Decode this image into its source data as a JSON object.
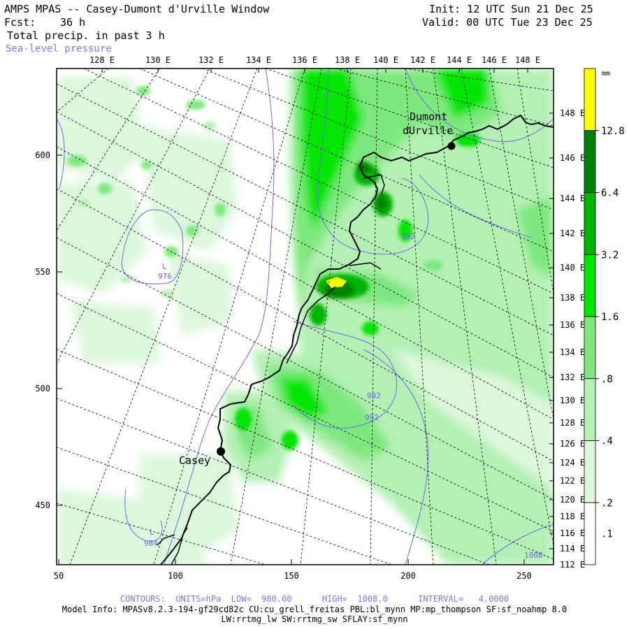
{
  "header": {
    "title": "AMPS MPAS -- Casey-Dumont d'Urville Window",
    "init": "Init: 12 UTC Sun 21 Dec 25",
    "fcst_label": "Fcst:",
    "fcst_value": "36 h",
    "valid": "Valid: 00 UTC Tue 23 Dec 25",
    "field": "Total precip. in past 3 h",
    "overlay": "Sea-level pressure"
  },
  "map": {
    "top_lon_labels": [
      "128 E",
      "130 E",
      "132 E",
      "134 E",
      "136 E",
      "138 E",
      "140 E",
      "142 E",
      "144 E",
      "146 E",
      "148 E"
    ],
    "right_lat_labels": [
      "148 E",
      "146 E",
      "144 E",
      "142 E",
      "140 E",
      "138 E",
      "136 E",
      "134 E",
      "132 E",
      "130 E",
      "128 E",
      "126 E",
      "124 E",
      "122 E",
      "120 E",
      "118 E",
      "116 E",
      "114 E",
      "112 E"
    ],
    "y_axis_labels": [
      "600",
      "550",
      "500",
      "450"
    ],
    "x_axis_labels": [
      "50",
      "100",
      "150",
      "200",
      "250"
    ],
    "stations": [
      {
        "name_line1": "Dumont",
        "name_line2": "dUrville"
      },
      {
        "name_line1": "Casey"
      }
    ],
    "pressure_labels": [
      {
        "label": "976",
        "marker": "L"
      },
      {
        "label": "992"
      },
      {
        "label": "992"
      },
      {
        "label": "992"
      },
      {
        "label": "984",
        "marker": "L"
      },
      {
        "label": "1008"
      }
    ]
  },
  "colorbar": {
    "unit": "mm",
    "levels": [
      "12.8",
      "6.4",
      "3.2",
      "1.6",
      ".8",
      ".4",
      ".2",
      ".1"
    ],
    "colors": [
      "#ffff00",
      "#008000",
      "#00b400",
      "#00e600",
      "#7ee87e",
      "#b4f0b4",
      "#dcf8dc",
      "#ffffff"
    ]
  },
  "footer": {
    "contours": "CONTOURS:  UNITS=hPa  LOW=  980.00      HIGH=  1008.0      INTERVAL=   4.0000",
    "model_info": "Model Info: MPASv8.2.3-194-gf29cd82c CU:cu_grell_freitas PBL:bl_mynn MP:mp_thompson SF:sf_noahmp 8.0",
    "model_info2": "LW:rrtmg_lw SW:rrtmg_sw SFLAY:sf_mynn"
  }
}
